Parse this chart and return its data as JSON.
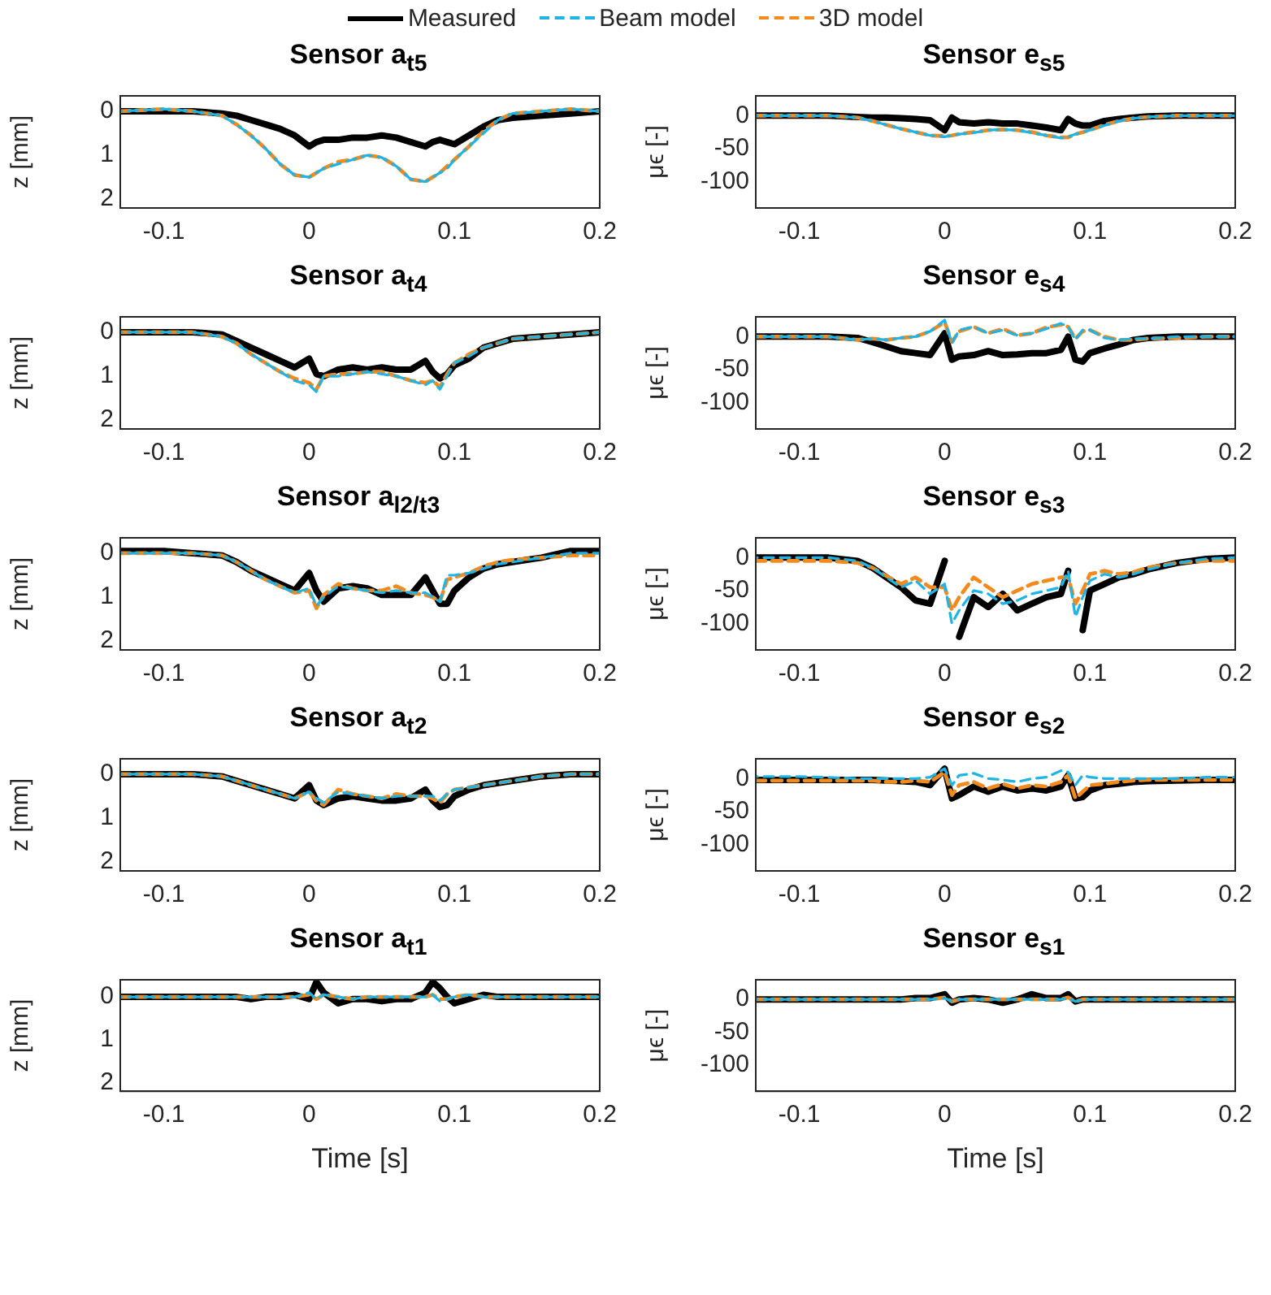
{
  "chart_data": [
    {
      "type": "line",
      "title": "Sensor a$_{t5}$",
      "ylabel": "z [mm]",
      "legend": "top",
      "marker": "none",
      "xlim": [
        -0.13,
        0.2
      ],
      "xticks": [
        -0.1,
        0,
        0.1,
        0.2
      ],
      "ylim": [
        2.2,
        -0.35
      ],
      "yticks": [
        0,
        1,
        2
      ],
      "x": [
        -0.13,
        -0.1,
        -0.08,
        -0.06,
        -0.05,
        -0.04,
        -0.03,
        -0.02,
        -0.01,
        0,
        0.005,
        0.01,
        0.02,
        0.03,
        0.04,
        0.05,
        0.06,
        0.07,
        0.08,
        0.085,
        0.09,
        0.095,
        0.1,
        0.11,
        0.12,
        0.13,
        0.14,
        0.16,
        0.18,
        0.2
      ],
      "series": [
        {
          "name": "Measured",
          "color": "#000000",
          "line_style": "solid",
          "values": [
            0,
            0,
            0,
            0.05,
            0.1,
            0.2,
            0.3,
            0.4,
            0.55,
            0.8,
            0.7,
            0.65,
            0.65,
            0.6,
            0.6,
            0.55,
            0.6,
            0.7,
            0.8,
            0.7,
            0.65,
            0.7,
            0.75,
            0.55,
            0.35,
            0.2,
            0.15,
            0.1,
            0.05,
            0
          ]
        },
        {
          "name": "Beam model",
          "color": "#1fb4e6",
          "line_style": "dashed",
          "values": [
            0,
            -0.05,
            0,
            0.1,
            0.3,
            0.55,
            0.85,
            1.2,
            1.45,
            1.5,
            1.4,
            1.3,
            1.2,
            1.1,
            1.0,
            1.05,
            1.25,
            1.55,
            1.6,
            1.5,
            1.4,
            1.3,
            1.1,
            0.8,
            0.5,
            0.2,
            0.05,
            0,
            -0.05,
            0
          ]
        },
        {
          "name": "3D model",
          "color": "#f28a1e",
          "line_style": "dashed",
          "values": [
            0,
            -0.05,
            0,
            0.1,
            0.3,
            0.55,
            0.85,
            1.2,
            1.45,
            1.5,
            1.4,
            1.3,
            1.15,
            1.1,
            1.0,
            1.05,
            1.25,
            1.55,
            1.6,
            1.5,
            1.4,
            1.25,
            1.1,
            0.8,
            0.45,
            0.2,
            0.05,
            0,
            -0.05,
            0
          ]
        }
      ]
    },
    {
      "type": "line",
      "title": "Sensor e$_{s5}$",
      "ylabel": "μϵ [-]",
      "marker": "none",
      "xlim": [
        -0.13,
        0.2
      ],
      "xticks": [
        -0.1,
        0,
        0.1,
        0.2
      ],
      "ylim": [
        -140,
        30
      ],
      "yticks": [
        -100,
        -50,
        0
      ],
      "x": [
        -0.13,
        -0.1,
        -0.08,
        -0.06,
        -0.05,
        -0.04,
        -0.03,
        -0.02,
        -0.01,
        0,
        0.005,
        0.01,
        0.02,
        0.03,
        0.04,
        0.05,
        0.06,
        0.07,
        0.08,
        0.085,
        0.09,
        0.095,
        0.1,
        0.11,
        0.12,
        0.13,
        0.14,
        0.16,
        0.18,
        0.2
      ],
      "series": [
        {
          "color": "#000000",
          "line_style": "solid",
          "values": [
            0,
            0,
            0,
            -2,
            -3,
            -3,
            -4,
            -5,
            -7,
            -22,
            -3,
            -10,
            -12,
            -10,
            -12,
            -12,
            -15,
            -18,
            -22,
            -5,
            -12,
            -15,
            -15,
            -8,
            -5,
            -3,
            -1,
            0,
            0,
            0
          ]
        },
        {
          "color": "#1fb4e6",
          "line_style": "dashed",
          "values": [
            0,
            0,
            0,
            -3,
            -8,
            -14,
            -20,
            -25,
            -30,
            -32,
            -30,
            -28,
            -26,
            -22,
            -21,
            -22,
            -26,
            -30,
            -34,
            -32,
            -28,
            -25,
            -22,
            -15,
            -8,
            -4,
            -2,
            0,
            0,
            0
          ]
        },
        {
          "color": "#f28a1e",
          "line_style": "dashed",
          "values": [
            0,
            0,
            0,
            -3,
            -8,
            -14,
            -20,
            -25,
            -30,
            -31,
            -30,
            -28,
            -25,
            -22,
            -21,
            -22,
            -25,
            -30,
            -33,
            -33,
            -28,
            -25,
            -22,
            -14,
            -8,
            -4,
            -2,
            0,
            0,
            0
          ]
        }
      ]
    },
    {
      "type": "line",
      "title": "Sensor a$_{t4}$",
      "ylabel": "z [mm]",
      "marker": "none",
      "xlim": [
        -0.13,
        0.2
      ],
      "xticks": [
        -0.1,
        0,
        0.1,
        0.2
      ],
      "ylim": [
        2.2,
        -0.35
      ],
      "yticks": [
        0,
        1,
        2
      ],
      "x": [
        -0.13,
        -0.1,
        -0.08,
        -0.06,
        -0.05,
        -0.04,
        -0.03,
        -0.02,
        -0.01,
        0,
        0.005,
        0.01,
        0.02,
        0.03,
        0.04,
        0.05,
        0.06,
        0.07,
        0.08,
        0.085,
        0.09,
        0.095,
        0.1,
        0.11,
        0.12,
        0.13,
        0.14,
        0.16,
        0.18,
        0.2
      ],
      "series": [
        {
          "color": "#000000",
          "line_style": "solid",
          "values": [
            0,
            0,
            0,
            0.05,
            0.2,
            0.35,
            0.5,
            0.65,
            0.8,
            0.6,
            0.95,
            1.0,
            0.85,
            0.8,
            0.85,
            0.8,
            0.85,
            0.85,
            0.65,
            0.9,
            1.05,
            0.95,
            0.75,
            0.6,
            0.35,
            0.25,
            0.15,
            0.1,
            0.05,
            0
          ]
        },
        {
          "color": "#1fb4e6",
          "line_style": "dashed",
          "values": [
            0,
            0,
            0,
            0.1,
            0.25,
            0.5,
            0.7,
            0.9,
            1.1,
            1.2,
            1.35,
            1.0,
            1.0,
            0.95,
            0.9,
            0.95,
            1.0,
            1.1,
            1.2,
            1.1,
            1.3,
            1.0,
            0.7,
            0.55,
            0.35,
            0.25,
            0.15,
            0.1,
            0.05,
            0
          ]
        },
        {
          "color": "#f28a1e",
          "line_style": "dashed",
          "values": [
            0,
            0,
            0,
            0.1,
            0.25,
            0.5,
            0.7,
            0.9,
            1.05,
            1.15,
            1.3,
            1.0,
            0.95,
            0.95,
            0.9,
            0.9,
            1.0,
            1.1,
            1.15,
            1.1,
            1.25,
            0.95,
            0.7,
            0.5,
            0.35,
            0.25,
            0.15,
            0.1,
            0.05,
            0
          ]
        }
      ]
    },
    {
      "type": "line",
      "title": "Sensor e$_{s4}$",
      "ylabel": "μϵ [-]",
      "marker": "none",
      "xlim": [
        -0.13,
        0.2
      ],
      "xticks": [
        -0.1,
        0,
        0.1,
        0.2
      ],
      "ylim": [
        -140,
        30
      ],
      "yticks": [
        -100,
        -50,
        0
      ],
      "x": [
        -0.13,
        -0.1,
        -0.08,
        -0.06,
        -0.05,
        -0.04,
        -0.03,
        -0.02,
        -0.01,
        0,
        0.005,
        0.01,
        0.02,
        0.03,
        0.04,
        0.05,
        0.06,
        0.07,
        0.08,
        0.085,
        0.09,
        0.095,
        0.1,
        0.11,
        0.12,
        0.13,
        0.14,
        0.16,
        0.18,
        0.2
      ],
      "series": [
        {
          "color": "#000000",
          "line_style": "solid",
          "values": [
            0,
            0,
            0,
            -2,
            -8,
            -15,
            -22,
            -25,
            -28,
            5,
            -35,
            -30,
            -28,
            -22,
            -28,
            -27,
            -25,
            -25,
            -20,
            0,
            -35,
            -38,
            -25,
            -18,
            -12,
            -5,
            -2,
            0,
            0,
            0
          ]
        },
        {
          "color": "#1fb4e6",
          "line_style": "dashed",
          "values": [
            0,
            0,
            0,
            -5,
            -3,
            -5,
            -2,
            0,
            8,
            25,
            -10,
            10,
            15,
            5,
            10,
            2,
            5,
            12,
            20,
            15,
            -5,
            10,
            10,
            -2,
            -5,
            -3,
            -3,
            0,
            0,
            0
          ]
        },
        {
          "color": "#f28a1e",
          "line_style": "dashed",
          "values": [
            0,
            0,
            0,
            -5,
            -3,
            -5,
            -2,
            0,
            8,
            22,
            -8,
            8,
            15,
            5,
            12,
            2,
            5,
            14,
            18,
            15,
            -3,
            8,
            10,
            0,
            -5,
            -5,
            -3,
            -2,
            0,
            0
          ]
        }
      ]
    },
    {
      "type": "line",
      "title": "Sensor a$_{l2/t3}$",
      "ylabel": "z [mm]",
      "marker": "none",
      "xlim": [
        -0.13,
        0.2
      ],
      "xticks": [
        -0.1,
        0,
        0.1,
        0.2
      ],
      "ylim": [
        2.2,
        -0.35
      ],
      "yticks": [
        0,
        1,
        2
      ],
      "x": [
        -0.13,
        -0.1,
        -0.08,
        -0.06,
        -0.05,
        -0.04,
        -0.03,
        -0.02,
        -0.01,
        0,
        0.005,
        0.01,
        0.02,
        0.03,
        0.04,
        0.05,
        0.06,
        0.07,
        0.08,
        0.085,
        0.09,
        0.095,
        0.1,
        0.11,
        0.12,
        0.13,
        0.14,
        0.16,
        0.18,
        0.2
      ],
      "series": [
        {
          "color": "#000000",
          "line_style": "solid",
          "values": [
            -0.05,
            -0.05,
            0,
            0.05,
            0.2,
            0.4,
            0.55,
            0.7,
            0.85,
            0.45,
            0.85,
            1.1,
            0.8,
            0.75,
            0.8,
            0.95,
            0.95,
            0.95,
            0.55,
            0.85,
            1.15,
            1.15,
            0.85,
            0.55,
            0.35,
            0.25,
            0.2,
            0.1,
            -0.05,
            -0.05
          ]
        },
        {
          "color": "#1fb4e6",
          "line_style": "dashed",
          "values": [
            0,
            0,
            0,
            0.05,
            0.2,
            0.4,
            0.6,
            0.75,
            0.9,
            0.8,
            1.2,
            1.0,
            0.75,
            0.8,
            0.85,
            0.9,
            0.85,
            0.9,
            0.9,
            1.0,
            1.1,
            0.5,
            0.5,
            0.45,
            0.35,
            0.25,
            0.2,
            0.1,
            0,
            0
          ]
        },
        {
          "color": "#f28a1e",
          "line_style": "dashed",
          "values": [
            0,
            0,
            0,
            0.05,
            0.2,
            0.4,
            0.6,
            0.75,
            0.9,
            0.85,
            1.25,
            0.95,
            0.7,
            0.8,
            0.85,
            0.85,
            0.75,
            0.9,
            0.95,
            1.0,
            1.1,
            0.6,
            0.55,
            0.45,
            0.3,
            0.2,
            0.15,
            0.1,
            0.05,
            0.05
          ]
        }
      ]
    },
    {
      "type": "line",
      "title": "Sensor e$_{s3}$",
      "ylabel": "μϵ [-]",
      "marker": "none",
      "xlim": [
        -0.13,
        0.2
      ],
      "xticks": [
        -0.1,
        0,
        0.1,
        0.2
      ],
      "ylim": [
        -140,
        30
      ],
      "yticks": [
        -100,
        -50,
        0
      ],
      "x": [
        -0.13,
        -0.1,
        -0.08,
        -0.06,
        -0.05,
        -0.04,
        -0.03,
        -0.02,
        -0.01,
        0,
        0.005,
        0.01,
        0.02,
        0.03,
        0.04,
        0.05,
        0.06,
        0.07,
        0.08,
        0.085,
        0.09,
        0.095,
        0.1,
        0.11,
        0.12,
        0.13,
        0.14,
        0.16,
        0.18,
        0.2
      ],
      "series": [
        {
          "color": "#000000",
          "line_style": "solid",
          "values": [
            0,
            0,
            0,
            -5,
            -15,
            -30,
            -45,
            -65,
            -70,
            -5,
            null,
            -120,
            -60,
            -75,
            -55,
            -80,
            -70,
            -60,
            -55,
            -20,
            null,
            -110,
            -50,
            -40,
            -30,
            -25,
            -18,
            -8,
            -2,
            0
          ]
        },
        {
          "color": "#1fb4e6",
          "line_style": "dashed",
          "values": [
            0,
            0,
            0,
            -5,
            -15,
            -30,
            -45,
            -35,
            -55,
            -40,
            -100,
            -80,
            -50,
            -55,
            -70,
            -65,
            -55,
            -50,
            -45,
            -20,
            -90,
            -60,
            -35,
            -25,
            -30,
            -25,
            -18,
            -8,
            -2,
            0
          ]
        },
        {
          "color": "#f28a1e",
          "line_style": "dashed",
          "values": [
            -5,
            -5,
            -5,
            -8,
            -15,
            -28,
            -40,
            -30,
            -45,
            -45,
            -80,
            -60,
            -30,
            -45,
            -60,
            -50,
            -40,
            -35,
            -30,
            -30,
            -70,
            -50,
            -25,
            -20,
            -25,
            -22,
            -15,
            -8,
            -5,
            -5
          ]
        }
      ]
    },
    {
      "type": "line",
      "title": "Sensor a$_{t2}$",
      "ylabel": "z [mm]",
      "marker": "none",
      "xlim": [
        -0.13,
        0.2
      ],
      "xticks": [
        -0.1,
        0,
        0.1,
        0.2
      ],
      "ylim": [
        2.2,
        -0.35
      ],
      "yticks": [
        0,
        1,
        2
      ],
      "x": [
        -0.13,
        -0.1,
        -0.08,
        -0.06,
        -0.05,
        -0.04,
        -0.03,
        -0.02,
        -0.01,
        0,
        0.005,
        0.01,
        0.02,
        0.03,
        0.04,
        0.05,
        0.06,
        0.07,
        0.08,
        0.085,
        0.09,
        0.095,
        0.1,
        0.11,
        0.12,
        0.13,
        0.14,
        0.16,
        0.18,
        0.2
      ],
      "series": [
        {
          "color": "#000000",
          "line_style": "solid",
          "values": [
            0,
            0,
            0,
            0.05,
            0.15,
            0.25,
            0.35,
            0.45,
            0.55,
            0.25,
            0.6,
            0.7,
            0.55,
            0.5,
            0.55,
            0.6,
            0.6,
            0.55,
            0.35,
            0.6,
            0.75,
            0.7,
            0.5,
            0.35,
            0.25,
            0.2,
            0.15,
            0.05,
            0,
            0
          ]
        },
        {
          "color": "#1fb4e6",
          "line_style": "dashed",
          "values": [
            0,
            0,
            0,
            0.05,
            0.15,
            0.25,
            0.35,
            0.45,
            0.55,
            0.4,
            0.55,
            0.65,
            0.4,
            0.45,
            0.5,
            0.55,
            0.5,
            0.5,
            0.5,
            0.5,
            0.6,
            0.45,
            0.35,
            0.3,
            0.25,
            0.2,
            0.15,
            0.05,
            0,
            0
          ]
        },
        {
          "color": "#f28a1e",
          "line_style": "dashed",
          "values": [
            0,
            0,
            0,
            0.05,
            0.15,
            0.25,
            0.35,
            0.45,
            0.55,
            0.4,
            0.6,
            0.7,
            0.35,
            0.45,
            0.5,
            0.55,
            0.45,
            0.5,
            0.5,
            0.55,
            0.65,
            0.45,
            0.35,
            0.3,
            0.25,
            0.2,
            0.15,
            0.05,
            0,
            0
          ]
        }
      ]
    },
    {
      "type": "line",
      "title": "Sensor e$_{s2}$",
      "ylabel": "μϵ [-]",
      "marker": "none",
      "xlim": [
        -0.13,
        0.2
      ],
      "xticks": [
        -0.1,
        0,
        0.1,
        0.2
      ],
      "ylim": [
        -140,
        30
      ],
      "yticks": [
        -100,
        -50,
        0
      ],
      "x": [
        -0.13,
        -0.1,
        -0.08,
        -0.06,
        -0.05,
        -0.04,
        -0.03,
        -0.02,
        -0.01,
        0,
        0.005,
        0.01,
        0.02,
        0.03,
        0.04,
        0.05,
        0.06,
        0.07,
        0.08,
        0.085,
        0.09,
        0.095,
        0.1,
        0.11,
        0.12,
        0.13,
        0.14,
        0.16,
        0.18,
        0.2
      ],
      "series": [
        {
          "color": "#000000",
          "line_style": "solid",
          "values": [
            -2,
            -2,
            -2,
            -2,
            -2,
            -3,
            -4,
            -5,
            -10,
            15,
            -30,
            -25,
            -12,
            -20,
            -12,
            -18,
            -15,
            -18,
            -12,
            5,
            -30,
            -28,
            -18,
            -10,
            -8,
            -5,
            -4,
            -3,
            -2,
            -2
          ]
        },
        {
          "color": "#1fb4e6",
          "line_style": "dashed",
          "values": [
            3,
            3,
            2,
            0,
            0,
            0,
            0,
            0,
            2,
            15,
            -10,
            5,
            8,
            0,
            -2,
            -5,
            0,
            2,
            12,
            10,
            -10,
            5,
            2,
            0,
            0,
            0,
            0,
            0,
            2,
            2
          ]
        },
        {
          "color": "#f28a1e",
          "line_style": "dashed",
          "values": [
            -3,
            -3,
            -3,
            -3,
            -3,
            -5,
            -5,
            -3,
            -5,
            10,
            -25,
            -10,
            -5,
            -15,
            -8,
            -15,
            -10,
            -12,
            -5,
            5,
            -30,
            -20,
            -10,
            -8,
            -5,
            -3,
            -2,
            -2,
            -2,
            -2
          ]
        }
      ]
    },
    {
      "type": "line",
      "title": "Sensor a$_{t1}$",
      "xlabel": "Time [s]",
      "ylabel": "z [mm]",
      "marker": "none",
      "xlim": [
        -0.13,
        0.2
      ],
      "xticks": [
        -0.1,
        0,
        0.1,
        0.2
      ],
      "ylim": [
        2.2,
        -0.4
      ],
      "yticks": [
        0,
        1,
        2
      ],
      "x": [
        -0.13,
        -0.1,
        -0.08,
        -0.06,
        -0.05,
        -0.04,
        -0.03,
        -0.02,
        -0.01,
        0,
        0.005,
        0.01,
        0.02,
        0.03,
        0.04,
        0.05,
        0.06,
        0.07,
        0.08,
        0.085,
        0.09,
        0.095,
        0.1,
        0.11,
        0.12,
        0.13,
        0.14,
        0.16,
        0.18,
        0.2
      ],
      "series": [
        {
          "color": "#000000",
          "line_style": "solid",
          "values": [
            0,
            0,
            0,
            0,
            0,
            0.05,
            0,
            0,
            -0.05,
            0.05,
            -0.35,
            -0.1,
            0.15,
            0.05,
            0.05,
            0.1,
            0.05,
            0.05,
            -0.1,
            -0.35,
            -0.2,
            0,
            0.15,
            0.05,
            -0.05,
            0,
            0,
            0,
            0,
            0
          ]
        },
        {
          "color": "#1fb4e6",
          "line_style": "dashed",
          "values": [
            0,
            0,
            0,
            0,
            0,
            0,
            0,
            0,
            0,
            -0.1,
            0.05,
            -0.05,
            0,
            0.05,
            0,
            0,
            0,
            0,
            0,
            -0.05,
            0.1,
            0.05,
            0,
            -0.05,
            0,
            0,
            0,
            0,
            0,
            0
          ]
        },
        {
          "color": "#f28a1e",
          "line_style": "dashed",
          "values": [
            0,
            0,
            0,
            0,
            0,
            0,
            0,
            0,
            0,
            -0.05,
            0.05,
            -0.05,
            0,
            0.05,
            0,
            0,
            0,
            0,
            0,
            -0.05,
            0.05,
            0.05,
            0,
            -0.05,
            0,
            0,
            0,
            0,
            0,
            0
          ]
        }
      ]
    },
    {
      "type": "line",
      "title": "Sensor e$_{s1}$",
      "xlabel": "Time [s]",
      "ylabel": "μϵ [-]",
      "marker": "none",
      "xlim": [
        -0.13,
        0.2
      ],
      "xticks": [
        -0.1,
        0,
        0.1,
        0.2
      ],
      "ylim": [
        -140,
        30
      ],
      "yticks": [
        -100,
        -50,
        0
      ],
      "x": [
        -0.13,
        -0.1,
        -0.08,
        -0.06,
        -0.05,
        -0.04,
        -0.03,
        -0.02,
        -0.01,
        0,
        0.005,
        0.01,
        0.02,
        0.03,
        0.04,
        0.05,
        0.06,
        0.07,
        0.08,
        0.085,
        0.09,
        0.095,
        0.1,
        0.11,
        0.12,
        0.13,
        0.14,
        0.16,
        0.18,
        0.2
      ],
      "series": [
        {
          "color": "#000000",
          "line_style": "solid",
          "values": [
            0,
            0,
            0,
            0,
            0,
            0,
            0,
            2,
            2,
            8,
            -5,
            0,
            2,
            0,
            -5,
            0,
            8,
            2,
            2,
            8,
            -3,
            0,
            0,
            0,
            0,
            0,
            0,
            0,
            0,
            0
          ]
        },
        {
          "color": "#1fb4e6",
          "line_style": "dashed",
          "values": [
            0,
            0,
            0,
            0,
            0,
            0,
            0,
            0,
            0,
            2,
            -3,
            0,
            0,
            0,
            0,
            0,
            0,
            0,
            0,
            2,
            -3,
            0,
            0,
            0,
            0,
            0,
            0,
            0,
            0,
            0
          ]
        },
        {
          "color": "#f28a1e",
          "line_style": "dashed",
          "values": [
            0,
            0,
            0,
            0,
            0,
            0,
            0,
            0,
            0,
            3,
            -3,
            0,
            0,
            0,
            0,
            0,
            0,
            0,
            0,
            3,
            -3,
            0,
            0,
            0,
            0,
            0,
            0,
            0,
            0,
            0
          ]
        }
      ]
    }
  ]
}
